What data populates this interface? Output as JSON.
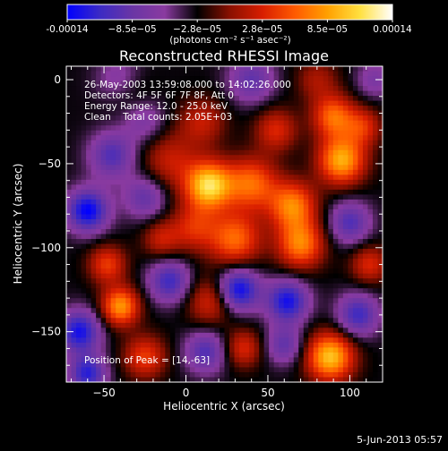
{
  "colorbar": {
    "tick_labels": [
      "-0.00014",
      "−8.5e−05",
      "−2.8e−05",
      "2.8e−05",
      "8.5e−05",
      "0.00014"
    ],
    "units_label": "(photons cm⁻² s⁻¹ asec⁻²)",
    "colors": [
      "#0000ff",
      "#3b2ac4",
      "#6a35a5",
      "#8a3aa0",
      "#000000",
      "#8a1000",
      "#d81e00",
      "#ff5a00",
      "#ffa000",
      "#ffe040",
      "#ffffff"
    ]
  },
  "info_lines": {
    "time": "26-May-2003 13:59:08.000 to 14:02:26.000",
    "detectors": "Detectors: 4F 5F 6F 7F 8F, Att 0",
    "energy": "Energy Range: 12.0 - 25.0 keV",
    "clean": "Clean    Total counts: 2.05E+03",
    "peak": "Position of Peak = [14,-63]"
  },
  "footer": {
    "date": "5-Jun-2013 05:57"
  },
  "chart_data": {
    "type": "heatmap",
    "title": "Reconstructed RHESSI Image",
    "xlabel": "Heliocentric X (arcsec)",
    "ylabel": "Heliocentric Y (arcsec)",
    "xlim": [
      -73,
      120
    ],
    "ylim": [
      -180,
      8
    ],
    "xticks": [
      -50,
      0,
      50,
      100
    ],
    "yticks": [
      0,
      -50,
      -100,
      -150
    ],
    "zlim": [
      -0.00014,
      0.00014
    ],
    "peak": {
      "x": 14,
      "y": -63
    },
    "blobs": [
      {
        "x": 14,
        "y": -63,
        "v": 0.00014,
        "s": 10
      },
      {
        "x": -10,
        "y": -48,
        "v": 5e-05,
        "s": 12
      },
      {
        "x": 40,
        "y": -62,
        "v": 9e-05,
        "s": 11
      },
      {
        "x": 65,
        "y": -75,
        "v": 0.0001,
        "s": 10
      },
      {
        "x": 95,
        "y": -48,
        "v": 0.00012,
        "s": 10
      },
      {
        "x": 90,
        "y": -22,
        "v": 9e-05,
        "s": 9
      },
      {
        "x": 108,
        "y": -28,
        "v": 6e-05,
        "s": 8
      },
      {
        "x": 70,
        "y": -98,
        "v": 0.0001,
        "s": 10
      },
      {
        "x": 30,
        "y": -95,
        "v": 9e-05,
        "s": 11
      },
      {
        "x": 5,
        "y": -88,
        "v": 6e-05,
        "s": 10
      },
      {
        "x": 88,
        "y": -165,
        "v": 0.00013,
        "s": 10
      },
      {
        "x": -40,
        "y": -135,
        "v": 0.00011,
        "s": 8
      },
      {
        "x": -48,
        "y": -110,
        "v": 7e-05,
        "s": 8
      },
      {
        "x": 15,
        "y": -132,
        "v": 6e-05,
        "s": 10
      },
      {
        "x": 35,
        "y": -160,
        "v": 6e-05,
        "s": 8
      },
      {
        "x": -25,
        "y": -165,
        "v": 7e-05,
        "s": 9
      },
      {
        "x": 10,
        "y": -25,
        "v": 5e-05,
        "s": 10
      },
      {
        "x": 55,
        "y": -30,
        "v": 6e-05,
        "s": 9
      },
      {
        "x": -35,
        "y": -5,
        "v": 3e-05,
        "s": 10
      },
      {
        "x": 80,
        "y": 0,
        "v": 4e-05,
        "s": 9
      },
      {
        "x": 112,
        "y": -110,
        "v": 6e-05,
        "s": 8
      },
      {
        "x": -15,
        "y": -95,
        "v": 5e-05,
        "s": 8
      },
      {
        "x": -60,
        "y": -78,
        "v": -0.00011,
        "s": 9
      },
      {
        "x": -65,
        "y": -150,
        "v": -0.0001,
        "s": 9
      },
      {
        "x": -60,
        "y": -175,
        "v": -9e-05,
        "s": 8
      },
      {
        "x": -45,
        "y": -45,
        "v": -7e-05,
        "s": 10
      },
      {
        "x": -25,
        "y": -70,
        "v": -6e-05,
        "s": 9
      },
      {
        "x": 32,
        "y": -125,
        "v": -0.00011,
        "s": 9
      },
      {
        "x": 62,
        "y": -132,
        "v": -0.0001,
        "s": 9
      },
      {
        "x": -10,
        "y": -120,
        "v": -8e-05,
        "s": 9
      },
      {
        "x": 12,
        "y": -162,
        "v": -7e-05,
        "s": 9
      },
      {
        "x": 105,
        "y": -140,
        "v": -8e-05,
        "s": 9
      },
      {
        "x": 100,
        "y": -85,
        "v": -7e-05,
        "s": 9
      },
      {
        "x": -40,
        "y": 0,
        "v": -5e-05,
        "s": 10
      },
      {
        "x": 40,
        "y": 0,
        "v": -6e-05,
        "s": 10
      },
      {
        "x": 60,
        "y": -158,
        "v": -6e-05,
        "s": 8
      },
      {
        "x": -25,
        "y": -25,
        "v": -4e-05,
        "s": 9
      },
      {
        "x": 115,
        "y": 0,
        "v": -4e-05,
        "s": 8
      }
    ]
  }
}
